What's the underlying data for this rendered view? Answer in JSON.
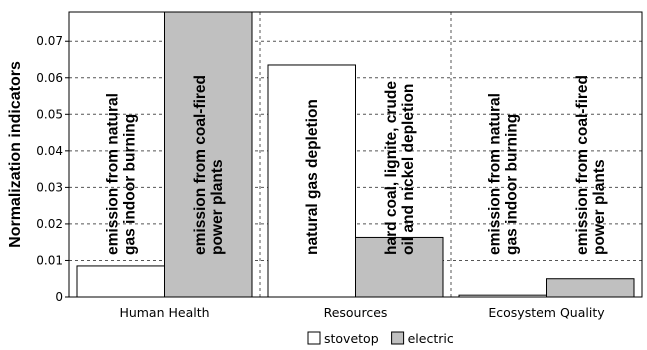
{
  "chart_data": {
    "type": "bar",
    "title": "",
    "xlabel": "",
    "ylabel": "Normalization indicators",
    "ylim": [
      0,
      0.078
    ],
    "yticks": [
      0,
      0.01,
      0.02,
      0.03,
      0.04,
      0.05,
      0.06,
      0.07
    ],
    "ytick_labels": [
      "0",
      "0.01",
      "0.02",
      "0.03",
      "0.04",
      "0.05",
      "0.06",
      "0.07"
    ],
    "categories": [
      "Human Health",
      "Resources",
      "Ecosystem Quality"
    ],
    "series": [
      {
        "name": "stovetop",
        "color": "#ffffff",
        "values": [
          0.0085,
          0.0635,
          0.0005
        ]
      },
      {
        "name": "electric",
        "color": "#c0c0c0",
        "values": [
          0.078,
          0.0163,
          0.005
        ]
      }
    ],
    "annotations": [
      {
        "category": 0,
        "series": 0,
        "lines": [
          "emission from natural",
          "gas indoor burning"
        ]
      },
      {
        "category": 0,
        "series": 1,
        "lines": [
          "emission from coal-fired",
          "power plants"
        ]
      },
      {
        "category": 1,
        "series": 0,
        "lines": [
          "natural gas depletion"
        ]
      },
      {
        "category": 1,
        "series": 1,
        "lines": [
          "hard coal, lignite, crude",
          "oil and nickel depletion"
        ]
      },
      {
        "category": 2,
        "series": 0,
        "lines": [
          "emission from natural",
          "gas indoor burning"
        ]
      },
      {
        "category": 2,
        "series": 1,
        "lines": [
          "emission from coal-fired",
          "power plants"
        ]
      }
    ],
    "grid": "dashed",
    "legend": "bottom-center"
  }
}
